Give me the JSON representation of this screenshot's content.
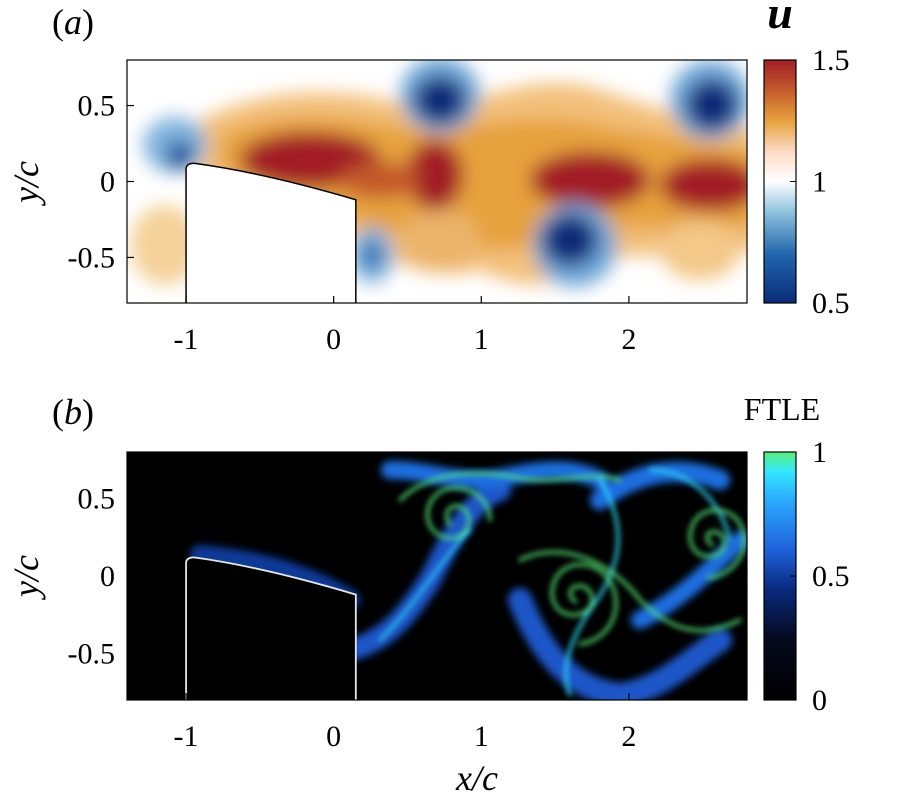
{
  "chart_data": [
    {
      "type": "heatmap",
      "panel_label": "(a)",
      "panel_letter": "a",
      "quantity": "u",
      "xlabel": "",
      "ylabel": "y/c",
      "xlim": [
        -1.4,
        2.8
      ],
      "ylim": [
        -0.8,
        0.8
      ],
      "xticks": [
        "-1",
        "0",
        "1",
        "2"
      ],
      "xtick_values": [
        -1,
        0,
        1,
        2
      ],
      "yticks": [
        "0.5",
        "0",
        "-0.5"
      ],
      "ytick_values": [
        0.5,
        0,
        -0.5
      ],
      "colorbar": {
        "title": "u",
        "min": 0.5,
        "max": 1.5,
        "ticks": [
          "1.5",
          "1",
          "0.5"
        ],
        "tick_values": [
          1.5,
          1,
          0.5
        ],
        "colors": [
          "#0a2c78",
          "#2166ac",
          "#92c5de",
          "#ffffff",
          "#fddbc7",
          "#e6a23c",
          "#c2582b",
          "#a21f26"
        ]
      },
      "body": {
        "x_leading_edge": -1.0,
        "x_trailing_edge": 0.15,
        "y_top_leading": 0.12,
        "y_top_trailing": -0.12,
        "y_bottom": -0.8
      },
      "features": [
        {
          "kind": "high",
          "x": -0.1,
          "y": 0.12,
          "value": 1.5
        },
        {
          "kind": "high",
          "x": 0.65,
          "y": 0.05,
          "value": 1.5
        },
        {
          "kind": "high",
          "x": 1.6,
          "y": 0.02,
          "value": 1.5
        },
        {
          "kind": "high",
          "x": 2.4,
          "y": -0.02,
          "value": 1.5
        },
        {
          "kind": "low",
          "x": -1.05,
          "y": 0.25,
          "value": 0.7
        },
        {
          "kind": "low",
          "x": 0.65,
          "y": 0.55,
          "value": 0.5
        },
        {
          "kind": "low",
          "x": 2.5,
          "y": 0.55,
          "value": 0.5
        },
        {
          "kind": "low",
          "x": 1.55,
          "y": -0.38,
          "value": 0.5
        },
        {
          "kind": "low",
          "x": 0.2,
          "y": -0.52,
          "value": 0.7
        }
      ]
    },
    {
      "type": "heatmap",
      "panel_label": "(b)",
      "panel_letter": "b",
      "quantity": "FTLE",
      "xlabel": "x/c",
      "ylabel": "y/c",
      "xlim": [
        -1.4,
        2.8
      ],
      "ylim": [
        -0.8,
        0.8
      ],
      "xticks": [
        "-1",
        "0",
        "1",
        "2"
      ],
      "xtick_values": [
        -1,
        0,
        1,
        2
      ],
      "yticks": [
        "0.5",
        "0",
        "-0.5"
      ],
      "ytick_values": [
        0.5,
        0,
        -0.5
      ],
      "colorbar": {
        "title": "FTLE",
        "min": 0,
        "max": 1,
        "ticks": [
          "1",
          "0.5",
          "0"
        ],
        "tick_values": [
          1,
          0.5,
          0
        ],
        "colors": [
          "#000000",
          "#0a1e5a",
          "#1f5fd8",
          "#2aa8ff",
          "#33e6ff",
          "#58f07a"
        ]
      },
      "body": {
        "x_leading_edge": -1.0,
        "x_trailing_edge": 0.15,
        "y_top_leading": 0.12,
        "y_top_trailing": -0.12,
        "y_bottom": -0.8
      },
      "features": [
        {
          "kind": "vortex",
          "x": 0.75,
          "y": 0.35
        },
        {
          "kind": "vortex",
          "x": 1.6,
          "y": -0.15
        },
        {
          "kind": "vortex",
          "x": 2.55,
          "y": 0.22
        }
      ]
    }
  ]
}
